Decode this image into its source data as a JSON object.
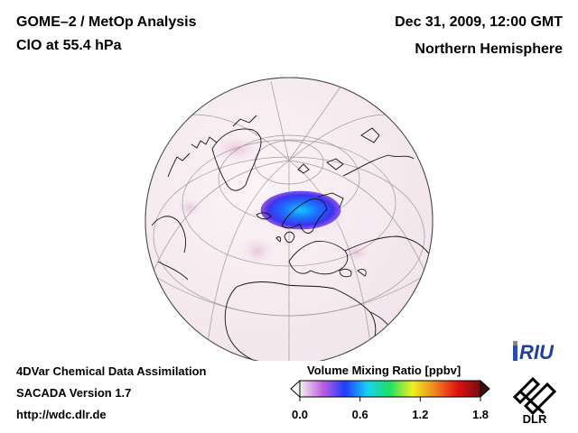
{
  "header": {
    "title_line1": "GOME–2 / MetOp Analysis",
    "title_line2": "ClO at 55.4 hPa",
    "date": "Dec 31, 2009, 12:00 GMT",
    "region": "Northern Hemisphere"
  },
  "footer": {
    "line1": "4DVar Chemical Data Assimilation",
    "line2": "SACADA Version 1.7",
    "line3": "http://wdc.dlr.de"
  },
  "colorbar": {
    "title": "Volume Mixing Ratio [ppbv]",
    "ticks": [
      "0.0",
      "0.6",
      "1.2",
      "1.8"
    ],
    "tick_values": [
      0.0,
      0.6,
      1.2,
      1.8
    ],
    "range": [
      0.0,
      1.8
    ],
    "colors": [
      "#f6f0f6",
      "#c060e0",
      "#1e3cff",
      "#18d2f0",
      "#20e060",
      "#f0f020",
      "#f08020",
      "#e01010",
      "#701010"
    ]
  },
  "logos": {
    "riu": "RIU",
    "dlr": "DLR"
  },
  "map": {
    "projection": "orthographic",
    "background_color": "#f7eef2",
    "high_clo_color": "#2a4cff",
    "high_clo_region": "Scandinavia / Norwegian Sea"
  }
}
